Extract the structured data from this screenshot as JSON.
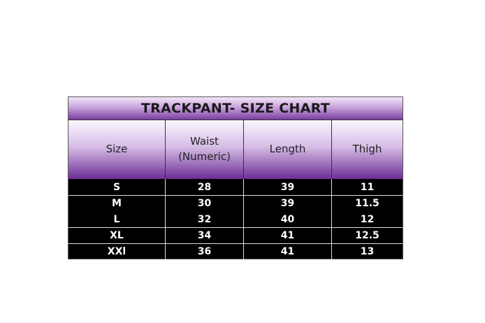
{
  "title": "TRACKPANT- SIZE CHART",
  "headers": [
    "Size",
    "Waist\n(Numeric)",
    "Length",
    "Thigh"
  ],
  "rows": [
    [
      "S",
      "28",
      "39",
      "11"
    ],
    [
      "M",
      "30",
      "39",
      "11.5"
    ],
    [
      "L",
      "32",
      "40",
      "12"
    ],
    [
      "XL",
      "34",
      "41",
      "12.5"
    ],
    [
      "XXl",
      "36",
      "41",
      "13"
    ]
  ],
  "colors": {
    "header_purple": "#7a3fa0",
    "body_bg": "#000000",
    "body_text": "#ffffff"
  }
}
